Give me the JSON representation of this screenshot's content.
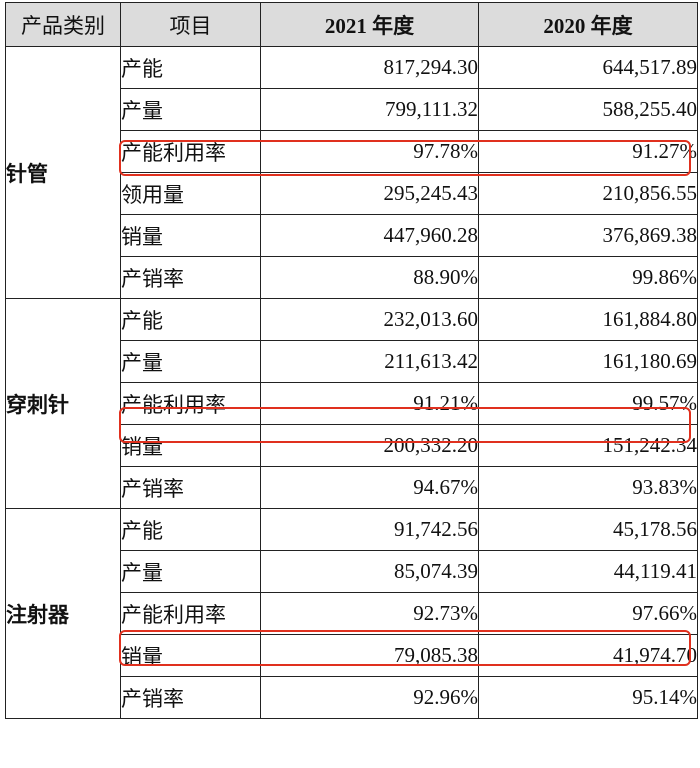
{
  "header": {
    "category": "产品类别",
    "item": "项目",
    "y2021": "2021 年度",
    "y2020": "2020 年度"
  },
  "groups": [
    {
      "category": "针管",
      "rows": [
        {
          "item": "产能",
          "v2021": "817,294.30",
          "v2020": "644,517.89"
        },
        {
          "item": "产量",
          "v2021": "799,111.32",
          "v2020": "588,255.40"
        },
        {
          "item": "产能利用率",
          "v2021": "97.78%",
          "v2020": "91.27%"
        },
        {
          "item": "领用量",
          "v2021": "295,245.43",
          "v2020": "210,856.55"
        },
        {
          "item": "销量",
          "v2021": "447,960.28",
          "v2020": "376,869.38"
        },
        {
          "item": "产销率",
          "v2021": "88.90%",
          "v2020": "99.86%"
        }
      ]
    },
    {
      "category": "穿刺针",
      "rows": [
        {
          "item": "产能",
          "v2021": "232,013.60",
          "v2020": "161,884.80"
        },
        {
          "item": "产量",
          "v2021": "211,613.42",
          "v2020": "161,180.69"
        },
        {
          "item": "产能利用率",
          "v2021": "91.21%",
          "v2020": "99.57%"
        },
        {
          "item": "销量",
          "v2021": "200,332.20",
          "v2020": "151,242.34"
        },
        {
          "item": "产销率",
          "v2021": "94.67%",
          "v2020": "93.83%"
        }
      ]
    },
    {
      "category": "注射器",
      "rows": [
        {
          "item": "产能",
          "v2021": "91,742.56",
          "v2020": "45,178.56"
        },
        {
          "item": "产量",
          "v2021": "85,074.39",
          "v2020": "44,119.41"
        },
        {
          "item": "产能利用率",
          "v2021": "92.73%",
          "v2020": "97.66%"
        },
        {
          "item": "销量",
          "v2021": "79,085.38",
          "v2020": "41,974.70"
        },
        {
          "item": "产销率",
          "v2021": "92.96%",
          "v2020": "95.14%"
        }
      ]
    }
  ],
  "highlight_color": "#e0301e"
}
